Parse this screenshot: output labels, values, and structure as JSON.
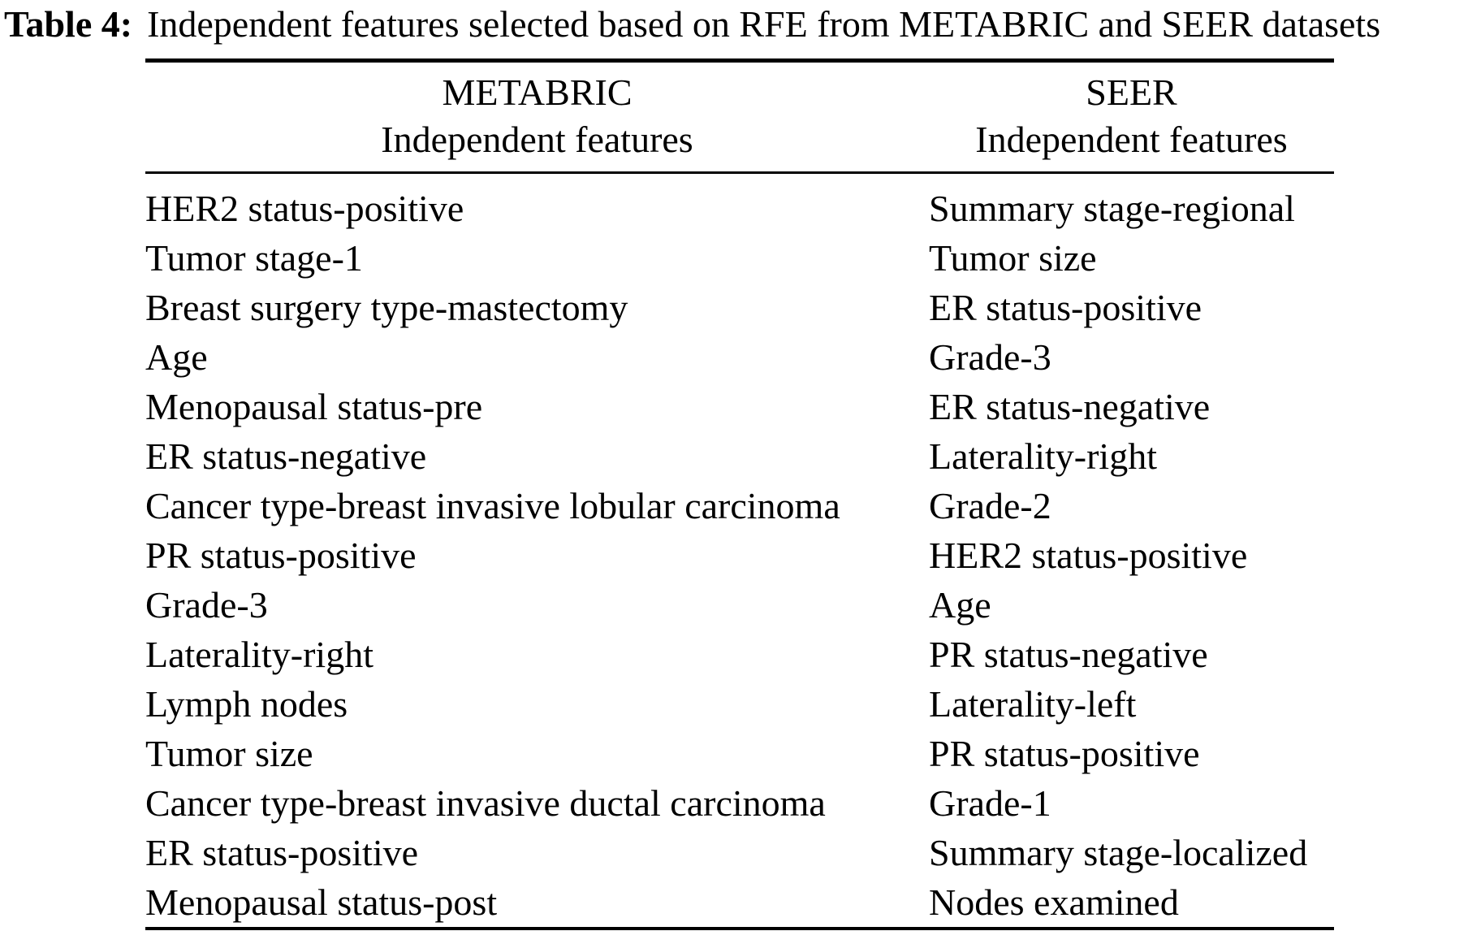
{
  "caption": {
    "label": "Table 4:",
    "text": "Independent features selected based on RFE from METABRIC and SEER datasets"
  },
  "table": {
    "metabric": {
      "name": "METABRIC",
      "subheader": "Independent features",
      "features": [
        "HER2 status-positive",
        "Tumor stage-1",
        "Breast surgery type-mastectomy",
        "Age",
        "Menopausal status-pre",
        "ER status-negative",
        "Cancer type-breast invasive lobular carcinoma",
        "PR status-positive",
        "Grade-3",
        "Laterality-right",
        "Lymph nodes",
        "Tumor size",
        "Cancer type-breast invasive ductal carcinoma",
        "ER status-positive",
        "Menopausal status-post"
      ]
    },
    "seer": {
      "name": "SEER",
      "subheader": "Independent features",
      "features": [
        "Summary stage-regional",
        "Tumor size",
        "ER status-positive",
        "Grade-3",
        "ER status-negative",
        "Laterality-right",
        "Grade-2",
        "HER2 status-positive",
        "Age",
        "PR status-negative",
        "Laterality-left",
        "PR status-positive",
        "Grade-1",
        "Summary stage-localized",
        "Nodes examined"
      ]
    }
  }
}
